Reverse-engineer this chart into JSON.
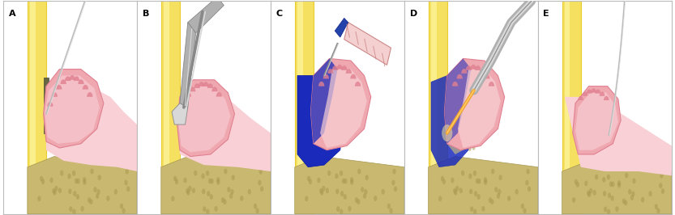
{
  "panels": [
    "A",
    "B",
    "C",
    "D",
    "E"
  ],
  "bg_color": "#ffffff",
  "border_color": "#bbbbbb",
  "tooth_yellow": "#f5e060",
  "tooth_yellow_light": "#fffaaa",
  "tooth_yellow_edge": "#e8cc30",
  "gum_pink": "#f0a8b0",
  "gum_pink_light": "#f8d0d5",
  "gum_pink_dark": "#e08090",
  "gum_inner_pink": "#f5bcc0",
  "bone_color": "#c8b870",
  "bone_dot": "#a89850",
  "tartar_color": "#666644",
  "blue_dye": "#1a2bbb",
  "blue_light": "#3344cc",
  "instrument_gray": "#b0b0b0",
  "instrument_light": "#d8d8d8",
  "instrument_dark": "#888888",
  "orange_fiber": "#f0a030",
  "orange_light": "#ffcc60",
  "label_fontsize": 8,
  "figsize": [
    8.33,
    2.66
  ],
  "dpi": 100
}
